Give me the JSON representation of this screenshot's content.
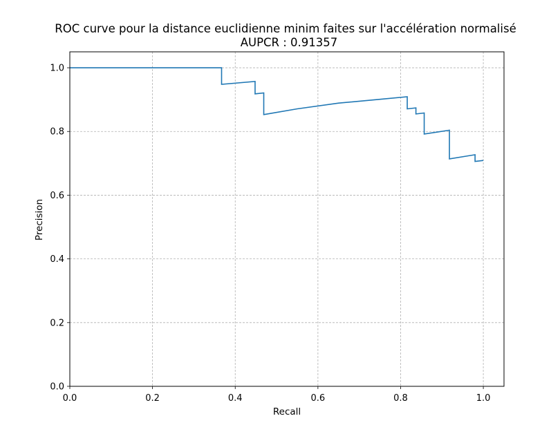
{
  "chart_data": {
    "type": "line",
    "title": "ROC curve pour la distance euclidienne minim faites sur l'accélération normalisé",
    "subtitle": "AUPCR : 0.91357",
    "xlabel": "Recall",
    "ylabel": "Precision",
    "xlim": [
      0,
      1.05
    ],
    "ylim": [
      0,
      1.05
    ],
    "xticks": [
      "0.0",
      "0.2",
      "0.4",
      "0.6",
      "0.8",
      "1.0"
    ],
    "yticks": [
      "0.0",
      "0.2",
      "0.4",
      "0.6",
      "0.8",
      "1.0"
    ],
    "grid": true,
    "series": [
      {
        "color": "#1f77b4",
        "points": [
          [
            0.0,
            1.0
          ],
          [
            0.367,
            1.0
          ],
          [
            0.367,
            0.948
          ],
          [
            0.448,
            0.957
          ],
          [
            0.448,
            0.918
          ],
          [
            0.469,
            0.921
          ],
          [
            0.469,
            0.853
          ],
          [
            0.55,
            0.871
          ],
          [
            0.65,
            0.889
          ],
          [
            0.75,
            0.901
          ],
          [
            0.816,
            0.909
          ],
          [
            0.816,
            0.871
          ],
          [
            0.837,
            0.874
          ],
          [
            0.837,
            0.855
          ],
          [
            0.857,
            0.858
          ],
          [
            0.857,
            0.792
          ],
          [
            0.918,
            0.804
          ],
          [
            0.918,
            0.714
          ],
          [
            0.98,
            0.727
          ],
          [
            0.98,
            0.706
          ],
          [
            1.0,
            0.709
          ]
        ]
      }
    ]
  }
}
